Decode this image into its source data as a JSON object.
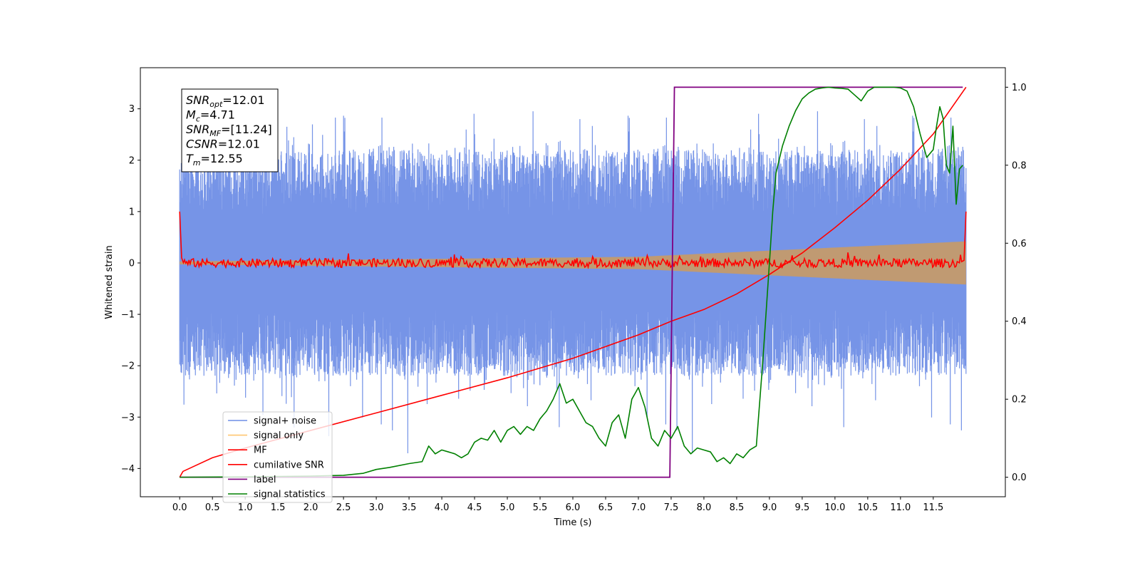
{
  "chart_data": {
    "type": "line",
    "xlabel": "Time (s)",
    "ylabel": "Whitened strain",
    "xlim": [
      -0.6,
      12.6
    ],
    "ylim": [
      -4.55,
      3.8
    ],
    "y2lim": [
      -0.05,
      1.05
    ],
    "x_ticks": [
      0.0,
      0.5,
      1.0,
      1.5,
      2.0,
      2.5,
      3.0,
      3.5,
      4.0,
      4.5,
      5.0,
      5.5,
      6.0,
      6.5,
      7.0,
      7.5,
      8.0,
      8.5,
      9.0,
      9.5,
      10.0,
      10.5,
      11.0,
      11.5
    ],
    "x_tick_labels": [
      "0.0",
      "0.5",
      "1.0",
      "1.5",
      "2.0",
      "2.5",
      "3.0",
      "3.5",
      "4.0",
      "4.5",
      "5.0",
      "5.5",
      "6.0",
      "6.5",
      "7.0",
      "7.5",
      "8.0",
      "8.5",
      "9.0",
      "9.5",
      "10.0",
      "10.5",
      "11.0",
      "11.5"
    ],
    "y_ticks": [
      -4,
      -3,
      -2,
      -1,
      0,
      1,
      2,
      3
    ],
    "y_tick_labels": [
      "−4",
      "−3",
      "−2",
      "−1",
      "0",
      "1",
      "2",
      "3"
    ],
    "y2_ticks": [
      0.0,
      0.2,
      0.4,
      0.6,
      0.8,
      1.0
    ],
    "y2_tick_labels": [
      "0.0",
      "0.2",
      "0.4",
      "0.6",
      "0.8",
      "1.0"
    ],
    "grid": false,
    "legend_position": "bottom-left",
    "annotation_box": [
      {
        "base": "SNR",
        "sub": "opt",
        "rest": "=12.01"
      },
      {
        "base": "M",
        "sub": "c",
        "rest": "=4.71"
      },
      {
        "base": "SNR",
        "sub": "MF",
        "rest": "=[11.24]"
      },
      {
        "base": "CSNR",
        "sub": "",
        "rest": "=12.01"
      },
      {
        "base": "T",
        "sub": "m",
        "rest": "=12.55"
      }
    ],
    "series": [
      {
        "name": "signal+ noise",
        "color": "#6f8ee6",
        "axis": "left",
        "description": "noise band approx ±1.9 with spikes to ±3.4",
        "envelope_amplitude": 1.9
      },
      {
        "name": "signal only",
        "color": "#c49a6c",
        "axis": "left",
        "envelope": {
          "x": [
            0,
            7,
            12
          ],
          "half_width": [
            0.03,
            0.12,
            0.42
          ]
        }
      },
      {
        "name": "MF",
        "color": "#ff0000",
        "axis": "left",
        "description": "jitter around 0 with amplitude ~0.12, endpoints at 1.0"
      },
      {
        "name": "cumilative SNR",
        "color": "#ff0000",
        "axis": "right",
        "x": [
          0.0,
          0.05,
          0.5,
          1.0,
          2.0,
          3.0,
          4.0,
          5.0,
          6.0,
          7.0,
          7.5,
          8.0,
          8.5,
          9.0,
          9.5,
          10.0,
          10.5,
          11.0,
          11.5,
          12.0
        ],
        "y": [
          0.0,
          0.015,
          0.05,
          0.075,
          0.12,
          0.165,
          0.21,
          0.255,
          0.305,
          0.365,
          0.4,
          0.43,
          0.47,
          0.52,
          0.575,
          0.64,
          0.71,
          0.79,
          0.88,
          1.0
        ]
      },
      {
        "name": "label",
        "color": "#800080",
        "axis": "right",
        "x": [
          0.0,
          7.48,
          7.55,
          11.95
        ],
        "y": [
          0.0,
          0.0,
          1.0,
          1.0
        ]
      },
      {
        "name": "signal statistics",
        "color": "#008000",
        "axis": "right",
        "x": [
          0.0,
          1.0,
          2.0,
          2.5,
          2.8,
          3.0,
          3.2,
          3.5,
          3.7,
          3.8,
          3.9,
          4.0,
          4.1,
          4.2,
          4.3,
          4.4,
          4.5,
          4.6,
          4.7,
          4.8,
          4.9,
          5.0,
          5.1,
          5.2,
          5.3,
          5.4,
          5.5,
          5.6,
          5.7,
          5.8,
          5.9,
          6.0,
          6.1,
          6.2,
          6.3,
          6.4,
          6.5,
          6.6,
          6.7,
          6.8,
          6.9,
          7.0,
          7.1,
          7.2,
          7.3,
          7.4,
          7.5,
          7.6,
          7.7,
          7.8,
          7.9,
          8.0,
          8.1,
          8.2,
          8.3,
          8.4,
          8.5,
          8.6,
          8.7,
          8.8,
          8.9,
          9.0,
          9.05,
          9.1,
          9.2,
          9.3,
          9.4,
          9.5,
          9.6,
          9.7,
          9.8,
          9.9,
          10.0,
          10.1,
          10.2,
          10.3,
          10.4,
          10.5,
          10.6,
          10.7,
          10.8,
          10.9,
          11.0,
          11.1,
          11.2,
          11.3,
          11.4,
          11.5,
          11.55,
          11.6,
          11.65,
          11.7,
          11.75,
          11.8,
          11.85,
          11.9,
          11.95
        ],
        "y": [
          0.0,
          0.001,
          0.003,
          0.005,
          0.01,
          0.02,
          0.025,
          0.035,
          0.04,
          0.08,
          0.06,
          0.07,
          0.065,
          0.06,
          0.05,
          0.06,
          0.09,
          0.1,
          0.095,
          0.12,
          0.09,
          0.12,
          0.13,
          0.11,
          0.13,
          0.12,
          0.15,
          0.17,
          0.2,
          0.24,
          0.19,
          0.2,
          0.17,
          0.14,
          0.13,
          0.1,
          0.08,
          0.14,
          0.16,
          0.1,
          0.2,
          0.23,
          0.18,
          0.1,
          0.08,
          0.12,
          0.1,
          0.13,
          0.08,
          0.06,
          0.075,
          0.07,
          0.065,
          0.04,
          0.05,
          0.035,
          0.06,
          0.05,
          0.07,
          0.08,
          0.3,
          0.55,
          0.68,
          0.78,
          0.85,
          0.9,
          0.94,
          0.97,
          0.985,
          0.995,
          0.998,
          1.0,
          0.998,
          0.997,
          0.995,
          0.98,
          0.965,
          0.99,
          1.0,
          1.0,
          1.0,
          1.0,
          0.998,
          0.99,
          0.95,
          0.88,
          0.82,
          0.84,
          0.9,
          0.95,
          0.92,
          0.8,
          0.78,
          0.9,
          0.7,
          0.79,
          0.8
        ]
      }
    ]
  }
}
